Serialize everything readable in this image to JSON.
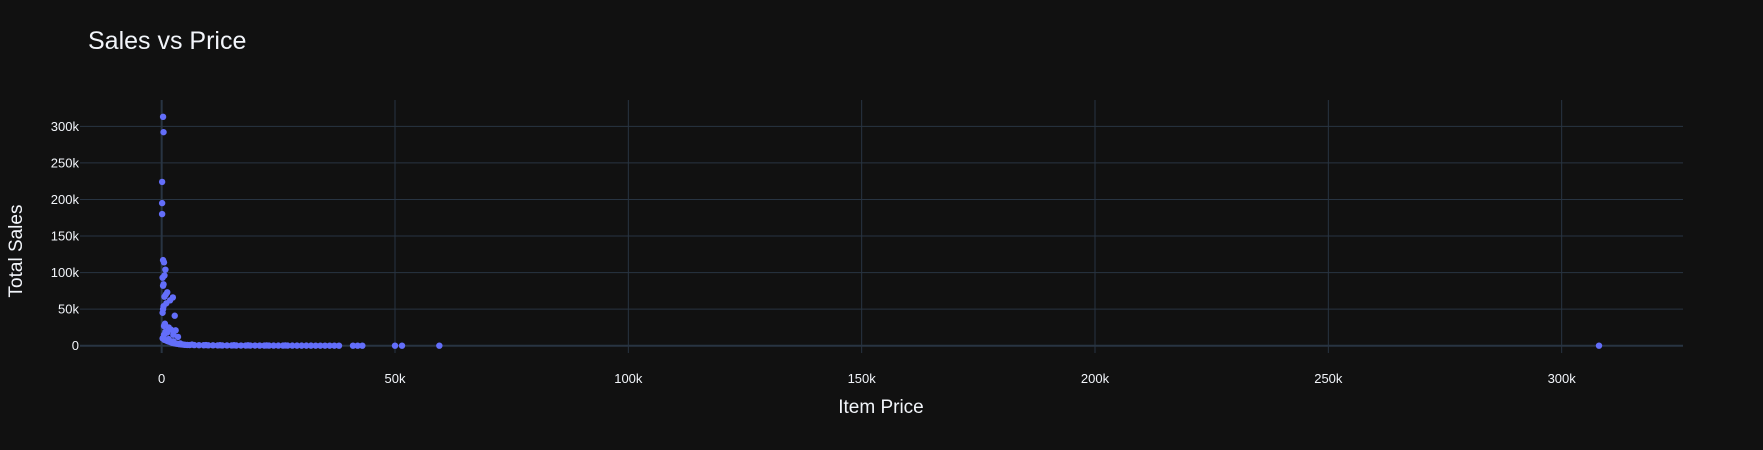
{
  "chart_data": {
    "type": "scatter",
    "title": "Sales vs Price",
    "xlabel": "Item Price",
    "ylabel": "Total Sales",
    "xlim": [
      -17500,
      326000
    ],
    "ylim": [
      -10000,
      336000
    ],
    "x_ticks": [
      0,
      50000,
      100000,
      150000,
      200000,
      250000,
      300000
    ],
    "x_tick_labels": [
      "0",
      "50k",
      "100k",
      "150k",
      "200k",
      "250k",
      "300k"
    ],
    "y_ticks": [
      0,
      50000,
      100000,
      150000,
      200000,
      250000,
      300000
    ],
    "y_tick_labels": [
      "0",
      "50k",
      "100k",
      "150k",
      "200k",
      "250k",
      "300k"
    ],
    "grid": true,
    "legend": "none",
    "colors": {
      "background": "#111111",
      "grid": "#283442",
      "zeroline": "#283442",
      "text": "#f2f5fa",
      "marker": "#636efa"
    },
    "series": [
      {
        "x": [
          300,
          400,
          100,
          100,
          100,
          300,
          500,
          800,
          600,
          200,
          400,
          300,
          1200,
          900,
          600,
          2400,
          1800,
          1000,
          400,
          300,
          200,
          2800,
          700,
          500,
          1500,
          2000,
          3000,
          800,
          1200,
          2500,
          3500,
          200,
          600,
          1000,
          1400,
          1800,
          2200,
          2600,
          3000,
          3400,
          3800,
          4200,
          4600,
          5000,
          5500,
          6000,
          7000,
          8000,
          9000,
          10000,
          11000,
          12000,
          13000,
          14000,
          15000,
          16000,
          17000,
          18000,
          19000,
          20000,
          21000,
          22000,
          23000,
          24000,
          25000,
          26000,
          27000,
          28000,
          29000,
          30000,
          31000,
          32000,
          33000,
          34000,
          35000,
          36000,
          37000,
          38000,
          41000,
          42000,
          43000,
          50000,
          51500,
          59500,
          308000,
          500,
          1500,
          2500,
          4000,
          6500,
          9500,
          12500,
          15500,
          18500,
          22500,
          26500
        ],
        "y": [
          313000,
          292000,
          224000,
          195000,
          180000,
          117000,
          114000,
          104000,
          96000,
          93000,
          84000,
          82000,
          73000,
          70000,
          67000,
          66000,
          62000,
          58000,
          54000,
          50000,
          45000,
          41000,
          30000,
          27000,
          25000,
          22000,
          21000,
          19000,
          18000,
          15000,
          12000,
          10000,
          8000,
          7000,
          6000,
          5000,
          4000,
          3500,
          3000,
          2500,
          2000,
          1800,
          1500,
          1200,
          1000,
          900,
          800,
          700,
          600,
          500,
          450,
          400,
          350,
          300,
          280,
          250,
          230,
          210,
          200,
          190,
          180,
          170,
          160,
          150,
          140,
          130,
          120,
          110,
          100,
          90,
          80,
          70,
          60,
          50,
          40,
          30,
          20,
          10,
          8,
          6,
          5,
          4,
          3,
          2,
          2,
          15000,
          9000,
          6000,
          3000,
          1500,
          900,
          700,
          600,
          500,
          400,
          300
        ]
      }
    ]
  }
}
